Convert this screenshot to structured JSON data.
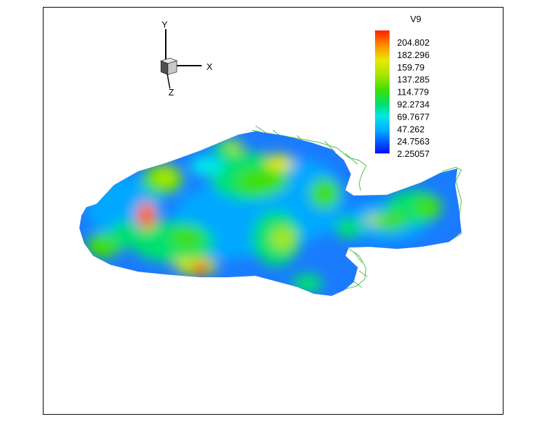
{
  "chart_data": {
    "type": "heatmap",
    "variable": "V9",
    "legend": {
      "title": "V9",
      "levels": [
        "204.802",
        "182.296",
        "159.79",
        "137.285",
        "114.779",
        "92.2734",
        "69.7677",
        "47.262",
        "24.7563",
        "2.25057"
      ],
      "colors": [
        "#ff2000",
        "#ff8c00",
        "#e8e800",
        "#a8e600",
        "#40e000",
        "#00e070",
        "#00e8e8",
        "#00a8ff",
        "#0050ff",
        "#0010ff"
      ],
      "placement": "top-right"
    },
    "axes": {
      "x": "X",
      "y": "Y",
      "z": "Z"
    },
    "range": [
      2.25057,
      204.802
    ],
    "grid": false
  }
}
